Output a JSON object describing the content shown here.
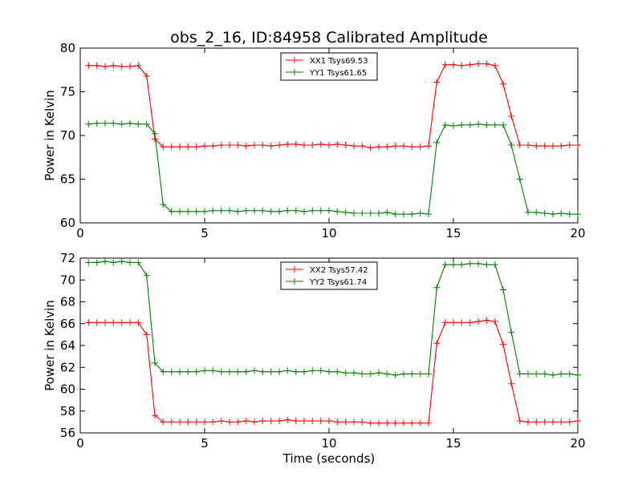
{
  "title": "obs_2_16, ID:84958 Calibrated Amplitude",
  "chart_data": [
    {
      "type": "line",
      "ylabel": "Power in Kelvin",
      "xlabel": "",
      "xlim": [
        0,
        20
      ],
      "ylim": [
        60,
        80
      ],
      "xticks": [
        0,
        5,
        10,
        15,
        20
      ],
      "yticks": [
        60,
        65,
        70,
        75,
        80
      ],
      "grid": false,
      "legend_position": "top-center",
      "x": [
        0.33,
        0.67,
        1.0,
        1.33,
        1.67,
        2.0,
        2.33,
        2.67,
        3.0,
        3.33,
        3.67,
        4.0,
        4.33,
        4.67,
        5.0,
        5.33,
        5.67,
        6.0,
        6.33,
        6.67,
        7.0,
        7.33,
        7.67,
        8.0,
        8.33,
        8.67,
        9.0,
        9.33,
        9.67,
        10.0,
        10.33,
        10.67,
        11.0,
        11.33,
        11.67,
        12.0,
        12.33,
        12.67,
        13.0,
        13.33,
        13.67,
        14.0,
        14.33,
        14.67,
        15.0,
        15.33,
        15.67,
        16.0,
        16.33,
        16.67,
        17.0,
        17.33,
        17.67,
        18.0,
        18.33,
        18.67,
        19.0,
        19.33,
        19.67,
        20.0
      ],
      "series": [
        {
          "name": "XX1 Tsys69.53",
          "color": "#ff0000",
          "values": [
            78.0,
            78.0,
            77.9,
            78.0,
            77.9,
            77.9,
            78.0,
            76.8,
            69.6,
            68.7,
            68.7,
            68.7,
            68.7,
            68.7,
            68.8,
            68.8,
            68.9,
            68.9,
            68.9,
            68.8,
            68.9,
            68.9,
            68.8,
            68.9,
            69.0,
            69.0,
            68.9,
            68.9,
            69.0,
            68.9,
            69.0,
            68.9,
            68.8,
            68.8,
            68.6,
            68.7,
            68.7,
            68.8,
            68.8,
            68.7,
            68.7,
            68.8,
            76.1,
            78.1,
            78.1,
            78.0,
            78.1,
            78.2,
            78.2,
            78.0,
            75.9,
            72.2,
            68.9,
            68.9,
            68.8,
            68.8,
            68.8,
            68.8,
            68.9,
            68.9
          ]
        },
        {
          "name": "YY1 Tsys61.65",
          "color": "#008000",
          "values": [
            71.3,
            71.4,
            71.4,
            71.4,
            71.3,
            71.4,
            71.3,
            71.3,
            70.2,
            62.1,
            61.3,
            61.3,
            61.3,
            61.3,
            61.3,
            61.4,
            61.4,
            61.4,
            61.3,
            61.4,
            61.4,
            61.4,
            61.3,
            61.3,
            61.4,
            61.4,
            61.3,
            61.4,
            61.4,
            61.4,
            61.3,
            61.2,
            61.1,
            61.1,
            61.1,
            61.1,
            61.2,
            61.0,
            61.0,
            61.0,
            61.1,
            61.0,
            69.2,
            71.2,
            71.1,
            71.2,
            71.2,
            71.3,
            71.2,
            71.2,
            71.2,
            68.9,
            65.0,
            61.2,
            61.2,
            61.1,
            61.0,
            61.1,
            61.0,
            61.0
          ]
        }
      ]
    },
    {
      "type": "line",
      "ylabel": "Power in Kelvin",
      "xlabel": "Time (seconds)",
      "xlim": [
        0,
        20
      ],
      "ylim": [
        56,
        72
      ],
      "xticks": [
        0,
        5,
        10,
        15,
        20
      ],
      "yticks": [
        56,
        58,
        60,
        62,
        64,
        66,
        68,
        70,
        72
      ],
      "grid": false,
      "legend_position": "top-center",
      "x": [
        0.33,
        0.67,
        1.0,
        1.33,
        1.67,
        2.0,
        2.33,
        2.67,
        3.0,
        3.33,
        3.67,
        4.0,
        4.33,
        4.67,
        5.0,
        5.33,
        5.67,
        6.0,
        6.33,
        6.67,
        7.0,
        7.33,
        7.67,
        8.0,
        8.33,
        8.67,
        9.0,
        9.33,
        9.67,
        10.0,
        10.33,
        10.67,
        11.0,
        11.33,
        11.67,
        12.0,
        12.33,
        12.67,
        13.0,
        13.33,
        13.67,
        14.0,
        14.33,
        14.67,
        15.0,
        15.33,
        15.67,
        16.0,
        16.33,
        16.67,
        17.0,
        17.33,
        17.67,
        18.0,
        18.33,
        18.67,
        19.0,
        19.33,
        19.67,
        20.0
      ],
      "series": [
        {
          "name": "XX2 Tsys57.42",
          "color": "#ff0000",
          "values": [
            66.1,
            66.1,
            66.1,
            66.1,
            66.1,
            66.1,
            66.1,
            65.0,
            57.6,
            57.0,
            57.0,
            57.0,
            57.0,
            57.0,
            57.0,
            57.0,
            57.1,
            57.0,
            57.0,
            57.1,
            57.0,
            57.1,
            57.1,
            57.1,
            57.2,
            57.1,
            57.1,
            57.1,
            57.1,
            57.1,
            57.0,
            57.0,
            57.0,
            57.0,
            56.9,
            56.9,
            56.9,
            56.9,
            56.9,
            56.9,
            56.9,
            56.9,
            64.2,
            66.1,
            66.1,
            66.1,
            66.1,
            66.2,
            66.3,
            66.2,
            64.1,
            60.5,
            57.1,
            57.0,
            57.0,
            57.0,
            57.0,
            57.0,
            57.0,
            57.1
          ]
        },
        {
          "name": "YY2 Tsys61.74",
          "color": "#008000",
          "values": [
            71.6,
            71.6,
            71.7,
            71.6,
            71.7,
            71.6,
            71.6,
            70.4,
            62.4,
            61.6,
            61.6,
            61.6,
            61.6,
            61.6,
            61.7,
            61.7,
            61.6,
            61.6,
            61.6,
            61.6,
            61.7,
            61.6,
            61.6,
            61.6,
            61.7,
            61.6,
            61.6,
            61.7,
            61.7,
            61.6,
            61.6,
            61.5,
            61.5,
            61.4,
            61.4,
            61.5,
            61.4,
            61.3,
            61.4,
            61.4,
            61.4,
            61.4,
            69.3,
            71.4,
            71.4,
            71.4,
            71.5,
            71.5,
            71.4,
            71.4,
            69.1,
            65.2,
            61.4,
            61.4,
            61.4,
            61.4,
            61.3,
            61.4,
            61.4,
            61.3
          ]
        }
      ]
    }
  ]
}
